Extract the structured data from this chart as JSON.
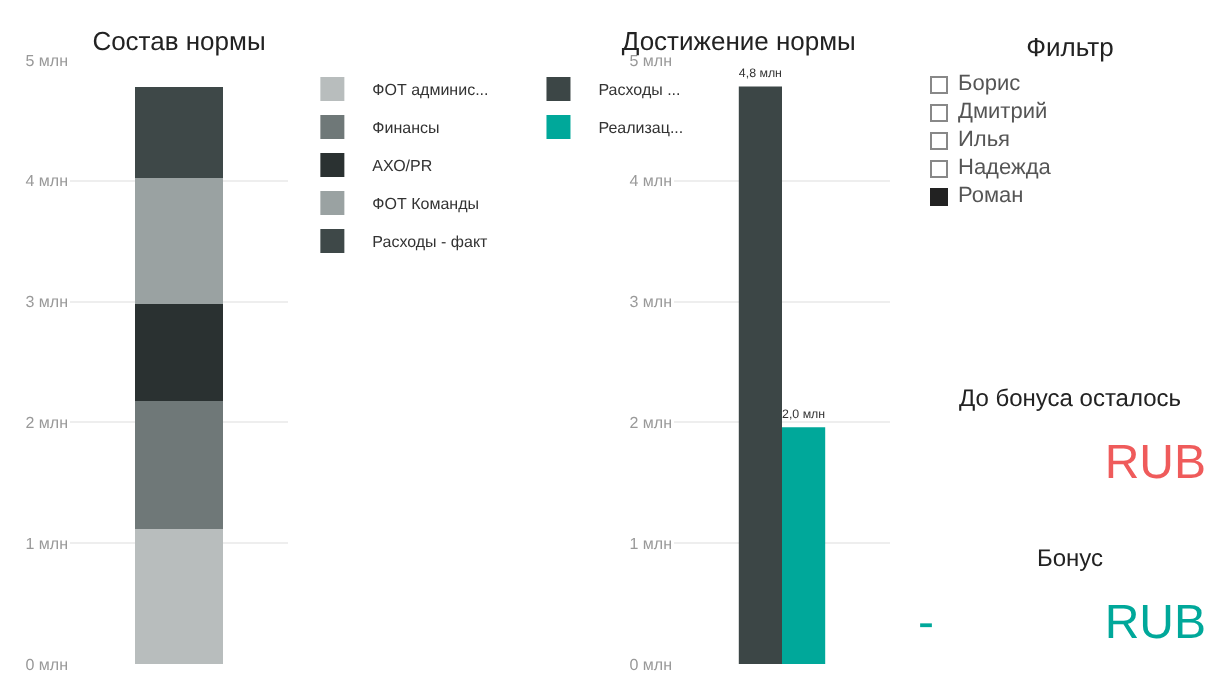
{
  "chart_data": [
    {
      "type": "bar",
      "title": "Состав нормы",
      "categories": [
        null
      ],
      "stacked": true,
      "legend": "right",
      "grid": "y",
      "ylim": [
        0,
        5
      ],
      "yticks": [
        {
          "value": 0,
          "label": "0 млн"
        },
        {
          "value": 1,
          "label": "1 млн"
        },
        {
          "value": 2,
          "label": "2 млн"
        },
        {
          "value": 3,
          "label": "3 млн"
        },
        {
          "value": 4,
          "label": "4 млн"
        },
        {
          "value": 5,
          "label": "5 млн"
        }
      ],
      "series": [
        {
          "name": "ФОТ админис...",
          "color": "#b8bdbd",
          "values": [
            1.12
          ]
        },
        {
          "name": "Финансы",
          "color": "#6f7878",
          "values": [
            1.06
          ]
        },
        {
          "name": "АХО/PR",
          "color": "#2a3131",
          "values": [
            0.8
          ]
        },
        {
          "name": "ФОТ Команды",
          "color": "#9aa2a2",
          "values": [
            1.04
          ]
        },
        {
          "name": "Расходы - факт",
          "color": "#3e4848",
          "values": [
            0.76
          ]
        }
      ]
    },
    {
      "type": "bar",
      "title": "Достижение нормы",
      "categories": [
        null
      ],
      "legend": "left",
      "grid": "y",
      "ylim": [
        0,
        5
      ],
      "yticks": [
        {
          "value": 0,
          "label": "0 млн"
        },
        {
          "value": 1,
          "label": "1 млн"
        },
        {
          "value": 2,
          "label": "2 млн"
        },
        {
          "value": 3,
          "label": "3 млн"
        },
        {
          "value": 4,
          "label": "4 млн"
        },
        {
          "value": 5,
          "label": "5 млн"
        }
      ],
      "series": [
        {
          "name": "Расходы ...",
          "color": "#3c4646",
          "values": [
            4.78
          ],
          "value_labels": [
            "4,8 млн"
          ]
        },
        {
          "name": "Реализац...",
          "color": "#00a89a",
          "values": [
            1.96
          ],
          "value_labels": [
            "2,0 млн"
          ]
        }
      ]
    },
    {
      "type": "other",
      "title": "Фильтр",
      "categories": [
        "Борис",
        "Дмитрий",
        "Илья",
        "Надежда",
        "Роман"
      ],
      "colors": [
        "#ffffff",
        "#ffffff",
        "#ffffff",
        "#ffffff",
        "#222222"
      ]
    },
    {
      "type": "other",
      "title": "До бонуса осталось",
      "annotations": [
        "RUB"
      ],
      "color": "#ef5b5b"
    },
    {
      "type": "other",
      "title": "Бонус",
      "annotations": [
        "-",
        "RUB"
      ],
      "color": "#00a89a"
    }
  ]
}
